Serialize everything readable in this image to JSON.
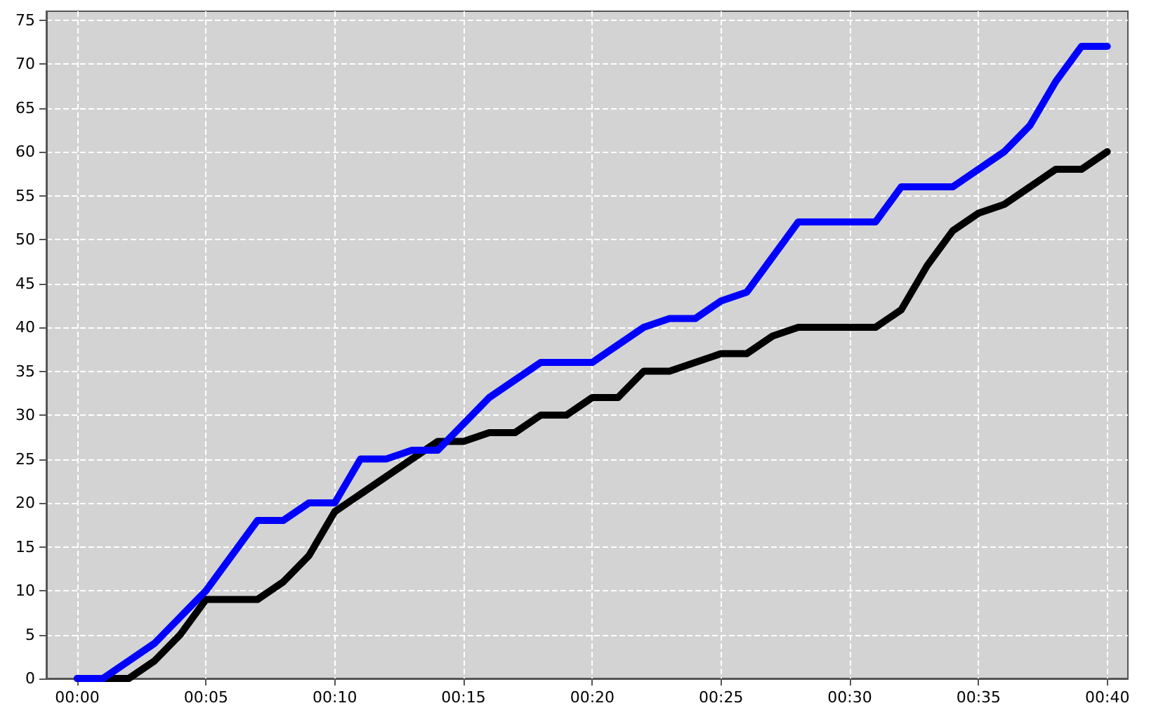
{
  "chart_data": {
    "type": "line",
    "x": [
      0,
      1,
      2,
      3,
      4,
      5,
      6,
      7,
      8,
      9,
      10,
      11,
      12,
      13,
      14,
      15,
      16,
      17,
      18,
      19,
      20,
      21,
      22,
      23,
      24,
      25,
      26,
      27,
      28,
      29,
      30,
      31,
      32,
      33,
      34,
      35,
      36,
      37,
      38,
      39,
      40
    ],
    "series": [
      {
        "color": "#000000",
        "values": [
          0,
          0,
          0,
          2,
          5,
          9,
          9,
          9,
          11,
          14,
          19,
          21,
          23,
          25,
          27,
          27,
          28,
          28,
          30,
          30,
          32,
          32,
          35,
          35,
          36,
          37,
          37,
          39,
          40,
          40,
          40,
          40,
          42,
          47,
          51,
          53,
          54,
          56,
          58,
          58,
          60
        ]
      },
      {
        "color": "#0000ff",
        "values": [
          0,
          0,
          2,
          4,
          7,
          10,
          14,
          18,
          18,
          20,
          20,
          25,
          25,
          26,
          26,
          29,
          32,
          34,
          36,
          36,
          36,
          38,
          40,
          41,
          41,
          43,
          44,
          48,
          52,
          52,
          52,
          52,
          56,
          56,
          56,
          58,
          60,
          63,
          68,
          72,
          72
        ]
      }
    ],
    "xlim": [
      -1.2,
      40.8
    ],
    "xticks": [
      {
        "value": 0,
        "label": "00:00"
      },
      {
        "value": 5,
        "label": "00:05"
      },
      {
        "value": 10,
        "label": "00:10"
      },
      {
        "value": 15,
        "label": "00:15"
      },
      {
        "value": 20,
        "label": "00:20"
      },
      {
        "value": 25,
        "label": "00:25"
      },
      {
        "value": 30,
        "label": "00:30"
      },
      {
        "value": 35,
        "label": "00:35"
      },
      {
        "value": 40,
        "label": "00:40"
      }
    ],
    "ylim": [
      0,
      76
    ],
    "yticks": [
      0,
      5,
      10,
      15,
      20,
      25,
      30,
      35,
      40,
      45,
      50,
      55,
      60,
      65,
      70,
      75
    ],
    "grid": true,
    "marker": "none",
    "line_style": "solid"
  }
}
